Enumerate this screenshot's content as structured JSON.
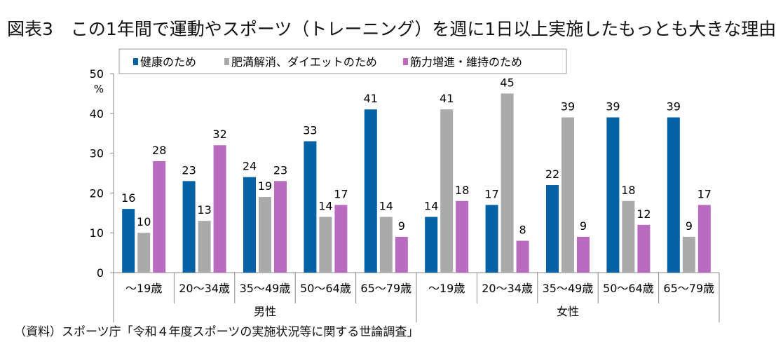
{
  "title": "図表3　この1年間で運動やスポーツ（トレーニング）を週に1日以上実施したもっとも大きな理由",
  "source": "（資料）スポーツ庁「令和４年度スポーツの実施状況等に関する世論調査」",
  "chart_data": {
    "type": "bar",
    "ylabel": "%",
    "ylim": [
      0,
      50
    ],
    "yticks": [
      0,
      10,
      20,
      30,
      40,
      50
    ],
    "grid": false,
    "legend_position": "top",
    "groups": [
      {
        "label": "男性",
        "categories": [
          "～19歳",
          "20～34歳",
          "35～49歳",
          "50～64歳",
          "65～79歳"
        ]
      },
      {
        "label": "女性",
        "categories": [
          "～19歳",
          "20～34歳",
          "35～49歳",
          "50～64歳",
          "65～79歳"
        ]
      }
    ],
    "series": [
      {
        "name": "健康のため",
        "color": "#0563a5",
        "values": [
          16,
          23,
          24,
          33,
          41,
          14,
          17,
          22,
          39,
          39
        ]
      },
      {
        "name": "肥満解消、ダイエットのため",
        "color": "#aaaaaa",
        "values": [
          10,
          13,
          19,
          14,
          14,
          41,
          45,
          39,
          18,
          9
        ]
      },
      {
        "name": "筋力増進・維持のため",
        "color": "#b96cbf",
        "values": [
          28,
          32,
          23,
          17,
          9,
          18,
          8,
          9,
          12,
          17
        ]
      }
    ]
  }
}
